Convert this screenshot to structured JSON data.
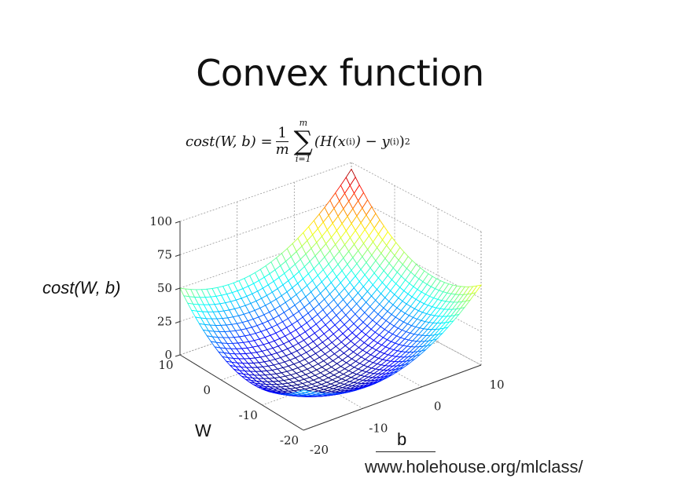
{
  "slide": {
    "title": "Convex function",
    "formula": {
      "lhs": "cost(W, b) =",
      "frac_num": "1",
      "frac_den": "m",
      "sum_upper": "m",
      "sum_lower": "i=1",
      "body": "(H(x",
      "sup1": "(i)",
      "mid": ") − y",
      "sup2": "(i)",
      "tail": ")",
      "sup3": "2"
    },
    "z_axis_label": "cost(W, b)",
    "w_axis_label": "W",
    "b_axis_label": "b",
    "source": "www.holehouse.org/mlclass/"
  },
  "chart_data": {
    "type": "surface",
    "z_ticks": [
      "100",
      "75",
      "50",
      "25",
      "0"
    ],
    "w_ticks": [
      "10",
      "0",
      "-10",
      "-20"
    ],
    "b_ticks": [
      "-20",
      "-10",
      "0",
      "10"
    ],
    "zlim": [
      0,
      100
    ],
    "wlim": [
      -20,
      10
    ],
    "blim": [
      -20,
      10
    ],
    "grid": true,
    "colormap": "jet",
    "corner_values": {
      "W10_bm20": 50,
      "Wm20_bm20": 30,
      "Wm20_b10": 60,
      "W10_b10": 95
    }
  }
}
